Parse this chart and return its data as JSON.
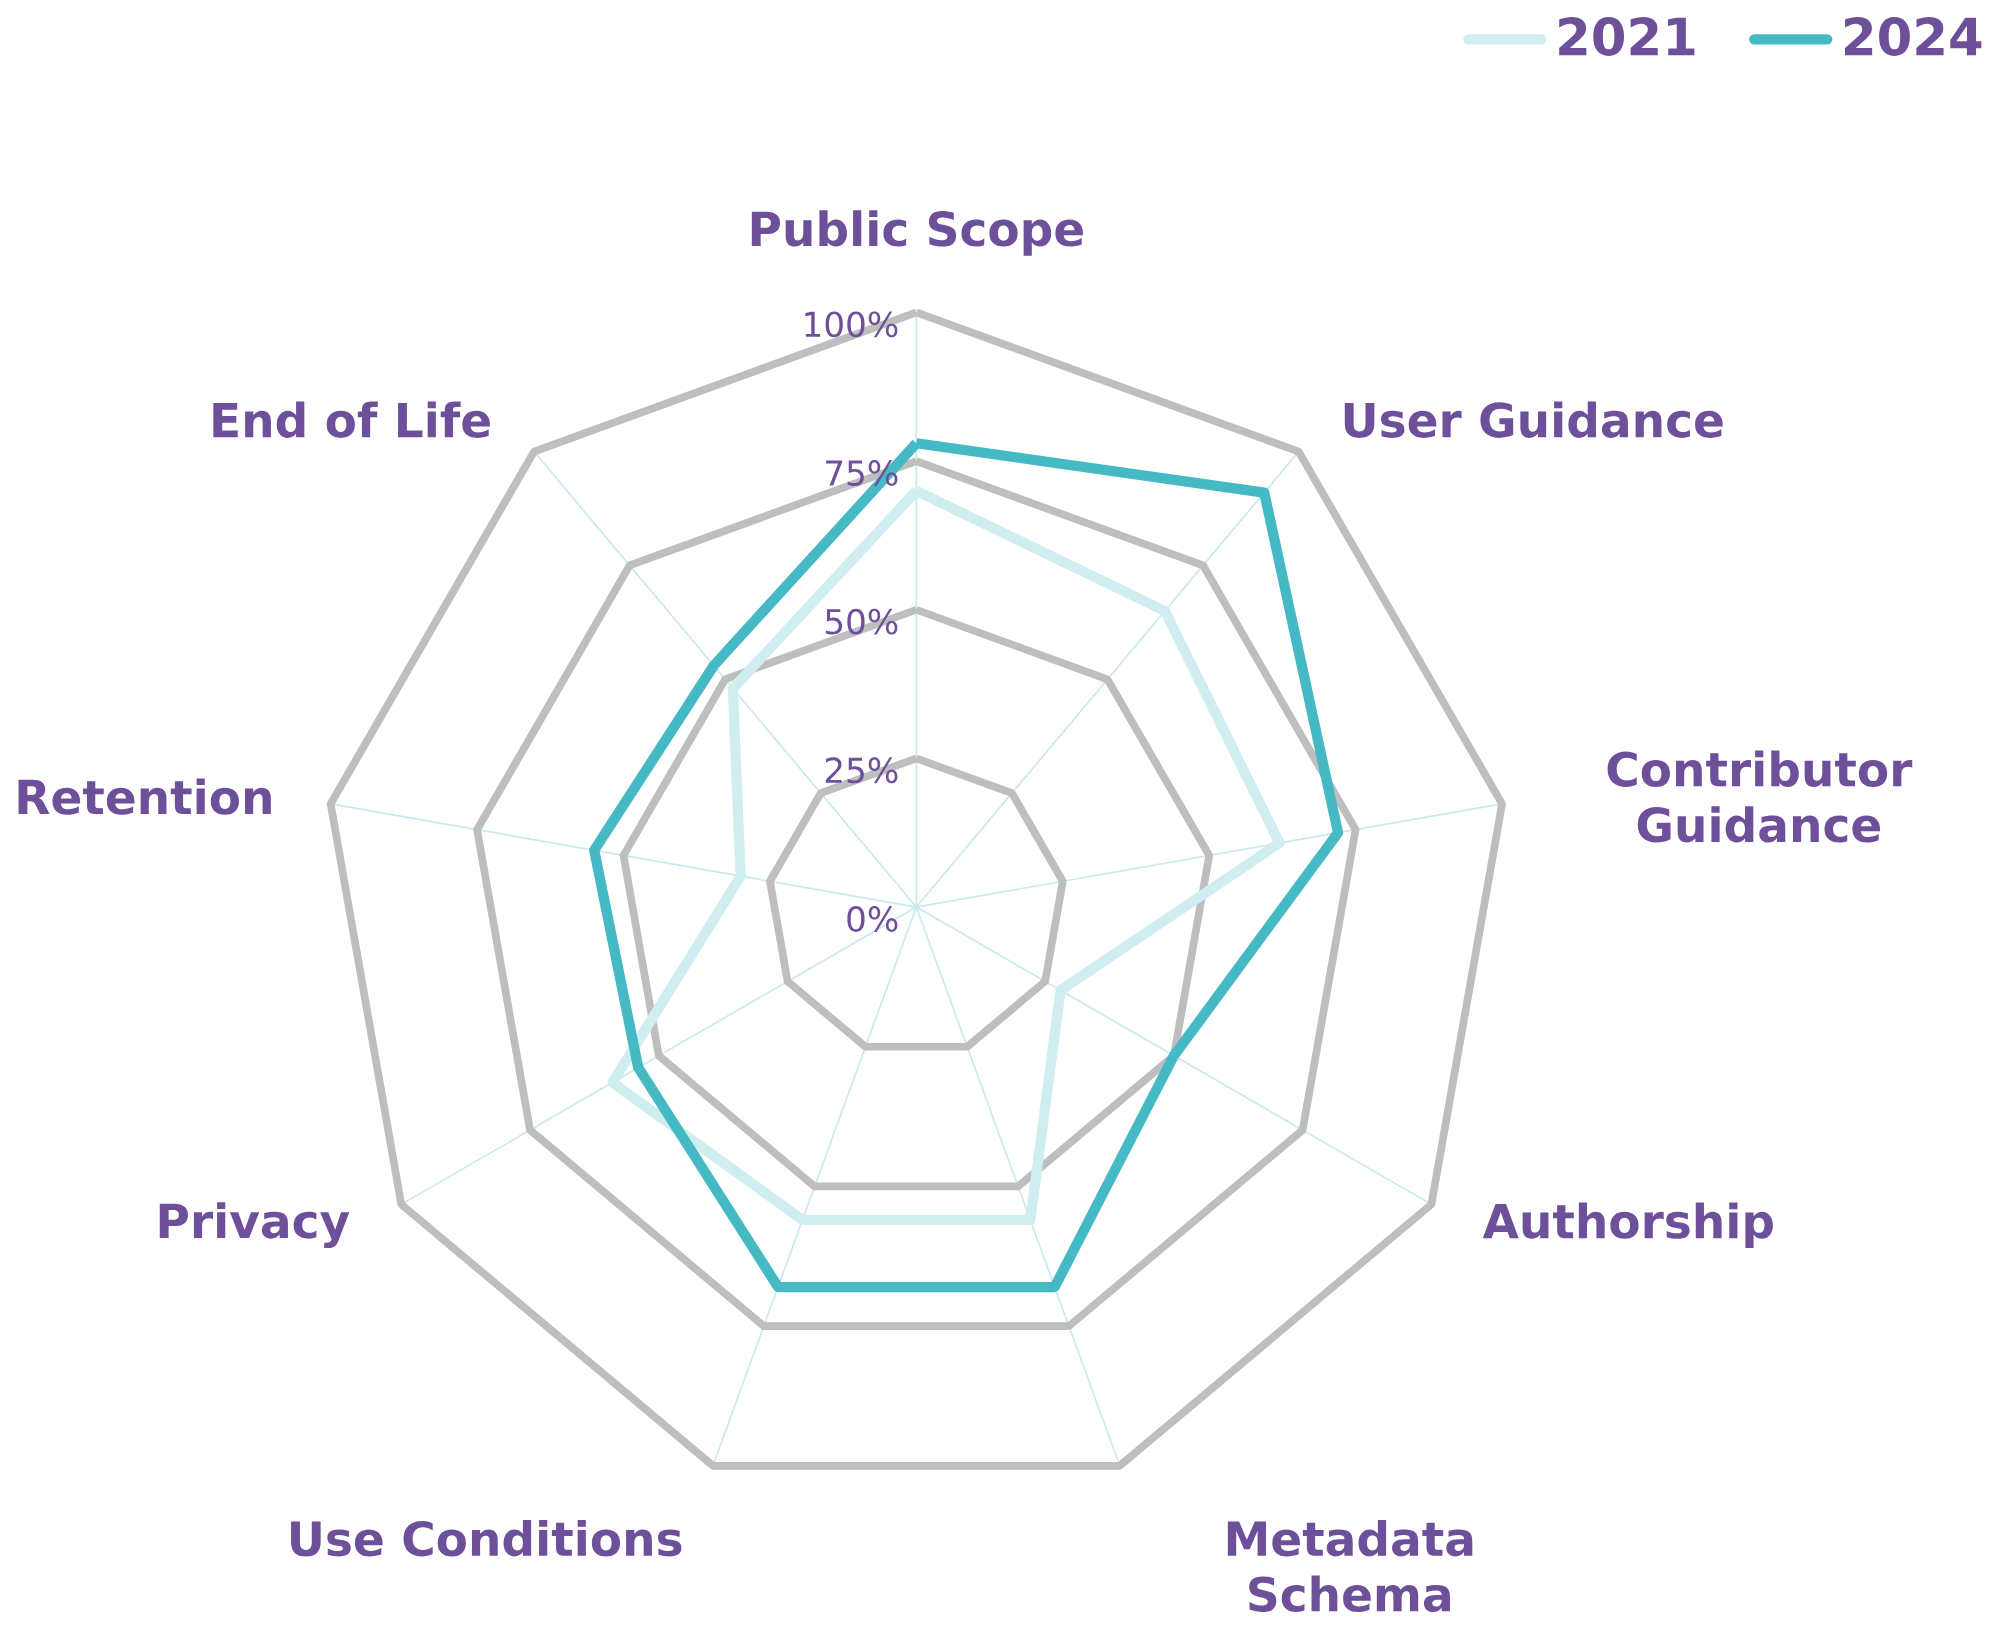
{
  "chart_data": {
    "type": "radar",
    "categories": [
      "Public Scope",
      "User Guidance",
      "Contributor Guidance",
      "Authorship",
      "Metadata Schema",
      "Use Conditions",
      "Privacy",
      "Retention",
      "End of Life"
    ],
    "series": [
      {
        "name": "2021",
        "color": "#d0edf0",
        "values": [
          70,
          65,
          62,
          28,
          56,
          56,
          59,
          30,
          48
        ]
      },
      {
        "name": "2024",
        "color": "#45b9c4",
        "values": [
          78,
          91,
          72,
          50,
          68,
          68,
          54,
          55,
          53
        ]
      }
    ],
    "ylim": [
      0,
      100
    ],
    "yticks": [
      {
        "value": 0,
        "label": "0%"
      },
      {
        "value": 25,
        "label": "25%"
      },
      {
        "value": 50,
        "label": "50%"
      },
      {
        "value": 75,
        "label": "75%"
      },
      {
        "value": 100,
        "label": "100%"
      }
    ],
    "grid": true,
    "legend": "top right",
    "line_style": "solid",
    "marker": "none"
  }
}
